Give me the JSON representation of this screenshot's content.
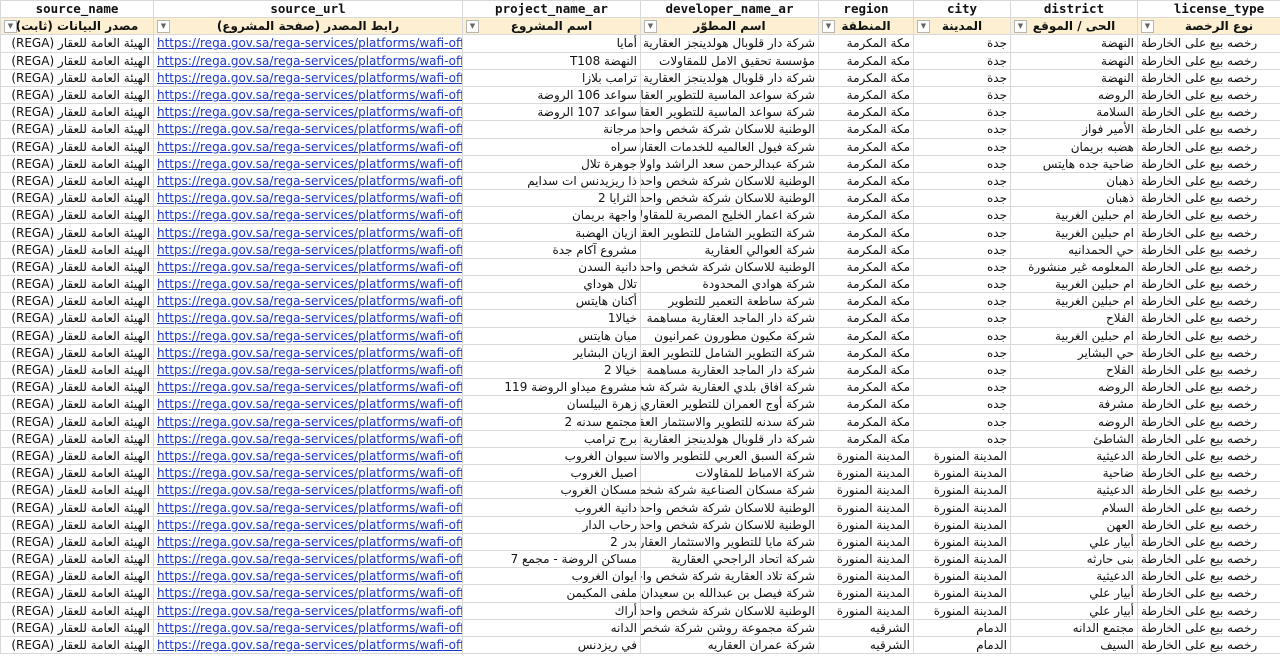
{
  "sheet": {
    "columns": [
      {
        "key": "source_name",
        "header_en": "source_name",
        "header_ar": "مصدر البيانات (ثابت)"
      },
      {
        "key": "source_url",
        "header_en": "source_url",
        "header_ar": "رابط المصدر (صفحة المشروع)"
      },
      {
        "key": "project_name_ar",
        "header_en": "project_name_ar",
        "header_ar": "اسم المشروع"
      },
      {
        "key": "developer_name_ar",
        "header_en": "developer_name_ar",
        "header_ar": "اسم المطوّر"
      },
      {
        "key": "region",
        "header_en": "region",
        "header_ar": "المنطقة"
      },
      {
        "key": "city",
        "header_en": "city",
        "header_ar": "المدينة"
      },
      {
        "key": "district",
        "header_en": "district",
        "header_ar": "الحى / الموقع"
      },
      {
        "key": "license_type",
        "header_en": "license_type",
        "header_ar": "نوع الرخصة"
      }
    ],
    "filter_icon": "dropdown-arrow-icon",
    "colors": {
      "header_fill": "#fdefd2",
      "link": "#1f38c8",
      "grid": "#d9d9d9"
    },
    "rows": [
      [
        "الهيئة العامة للعقار (REGA)",
        "https://rega.gov.sa/rega-services/platforms/wafi-off-",
        "أمايا",
        "شركة دار قلوبال هولدينجز العقارية",
        "مكة المكرمة",
        "جدة",
        "النهضة",
        "رخصه بيع على الخارطة"
      ],
      [
        "الهيئة العامة للعقار (REGA)",
        "https://rega.gov.sa/rega-services/platforms/wafi-off-",
        "النهضة T108",
        "مؤسسة تحقيق الامل للمقاولات",
        "مكة المكرمة",
        "جدة",
        "النهضة",
        "رخصه بيع على الخارطة"
      ],
      [
        "الهيئة العامة للعقار (REGA)",
        "https://rega.gov.sa/rega-services/platforms/wafi-off-",
        "ترامب بلازا",
        "شركة دار قلوبال هولدينجز العقارية",
        "مكة المكرمة",
        "جدة",
        "النهضة",
        "رخصه بيع على الخارطة"
      ],
      [
        "الهيئة العامة للعقار (REGA)",
        "https://rega.gov.sa/rega-services/platforms/wafi-off-",
        "سواعد 106 الروضة",
        "شركة سواعد الماسية للتطوير العقاري",
        "مكة المكرمة",
        "جدة",
        "الروضه",
        "رخصه بيع على الخارطة"
      ],
      [
        "الهيئة العامة للعقار (REGA)",
        "https://rega.gov.sa/rega-services/platforms/wafi-off-",
        "سواعد 107 الروضة",
        "شركة سواعد الماسية للتطوير العقاري",
        "مكة المكرمة",
        "جدة",
        "السلامة",
        "رخصه بيع على الخارطة"
      ],
      [
        "الهيئة العامة للعقار (REGA)",
        "https://rega.gov.sa/rega-services/platforms/wafi-off-",
        "مرجانة",
        "الوطنية للاسكان شركة شخص واحد",
        "مكة المكرمة",
        "جده",
        "الأمير فواز",
        "رخصه بيع على الخارطة"
      ],
      [
        "الهيئة العامة للعقار (REGA)",
        "https://rega.gov.sa/rega-services/platforms/wafi-off-",
        "سراه",
        "شركة فيول العالميه للخدمات العقارية",
        "مكة المكرمة",
        "جده",
        "هضبه بريمان",
        "رخصه بيع على الخارطة"
      ],
      [
        "الهيئة العامة للعقار (REGA)",
        "https://rega.gov.sa/rega-services/platforms/wafi-off-",
        "جوهرة تلال",
        "شركة عبدالرحمن سعد الراشد واولاده",
        "مكة المكرمة",
        "جده",
        "ضاحية جده هايتس",
        "رخصه بيع على الخارطة"
      ],
      [
        "الهيئة العامة للعقار (REGA)",
        "https://rega.gov.sa/rega-services/platforms/wafi-off-",
        "ذا ريزيدنس ات سدايم",
        "الوطنية للاسكان شركة شخص واحد",
        "مكة المكرمة",
        "جده",
        "ذهبان",
        "رخصه بيع على الخارطة"
      ],
      [
        "الهيئة العامة للعقار (REGA)",
        "https://rega.gov.sa/rega-services/platforms/wafi-off-",
        "الثرايا 2",
        "الوطنية للاسكان شركة شخص واحد",
        "مكة المكرمة",
        "جده",
        "ذهبان",
        "رخصه بيع على الخارطة"
      ],
      [
        "الهيئة العامة للعقار (REGA)",
        "https://rega.gov.sa/rega-services/platforms/wafi-off-",
        "واجهة بريمان",
        "شركة اعمار الخليج المصرية للمقاولات",
        "مكة المكرمة",
        "جده",
        "ام حبلين الغربية",
        "رخصه بيع على الخارطة"
      ],
      [
        "الهيئة العامة للعقار (REGA)",
        "https://rega.gov.sa/rega-services/platforms/wafi-off-",
        "ازيان الهضبة",
        "شركة التطوير الشامل للتطوير العقاري",
        "مكة المكرمة",
        "جده",
        "ام حبلين الغربية",
        "رخصه بيع على الخارطة"
      ],
      [
        "الهيئة العامة للعقار (REGA)",
        "https://rega.gov.sa/rega-services/platforms/wafi-off-",
        "مشروع آكام جدة",
        "شركة العوالي العقارية",
        "مكة المكرمة",
        "جده",
        "حي الحمدانيه",
        "رخصه بيع على الخارطة"
      ],
      [
        "الهيئة العامة للعقار (REGA)",
        "https://rega.gov.sa/rega-services/platforms/wafi-off-",
        "دانية السدن",
        "الوطنية للاسكان شركة شخص واحد",
        "مكة المكرمة",
        "جده",
        "المعلومه غير منشورة",
        "رخصه بيع على الخارطة"
      ],
      [
        "الهيئة العامة للعقار (REGA)",
        "https://rega.gov.sa/rega-services/platforms/wafi-off-",
        "تلال هوداي",
        "شركة هوادي المحدودة",
        "مكة المكرمة",
        "جده",
        "ام حبلين الغربية",
        "رخصه بيع على الخارطة"
      ],
      [
        "الهيئة العامة للعقار (REGA)",
        "https://rega.gov.sa/rega-services/platforms/wafi-off-",
        "أكنان هايتس",
        "شركة ساطعة التعمير للتطوير",
        "مكة المكرمة",
        "جده",
        "ام حبلين الغربية",
        "رخصه بيع على الخارطة"
      ],
      [
        "الهيئة العامة للعقار (REGA)",
        "https://rega.gov.sa/rega-services/platforms/wafi-off-",
        "خيالا1",
        "شركة دار الماجد العقارية مساهمة",
        "مكة المكرمة",
        "جده",
        "الفلاح",
        "رخصه بيع على الخارطة"
      ],
      [
        "الهيئة العامة للعقار (REGA)",
        "https://rega.gov.sa/rega-services/platforms/wafi-off-",
        "ميان هايتس",
        "شركة مكيون مطورون عمرانيون",
        "مكة المكرمة",
        "جده",
        "ام حبلين الغربية",
        "رخصه بيع على الخارطة"
      ],
      [
        "الهيئة العامة للعقار (REGA)",
        "https://rega.gov.sa/rega-services/platforms/wafi-off-",
        "ازيان البشاير",
        "شركة التطوير الشامل للتطوير العقاري",
        "مكة المكرمة",
        "جده",
        "حي البشاير",
        "رخصه بيع على الخارطة"
      ],
      [
        "الهيئة العامة للعقار (REGA)",
        "https://rega.gov.sa/rega-services/platforms/wafi-off-",
        "خيالا 2",
        "شركة دار الماجد العقارية مساهمة",
        "مكة المكرمة",
        "جده",
        "الفلاح",
        "رخصه بيع على الخارطة"
      ],
      [
        "الهيئة العامة للعقار (REGA)",
        "https://rega.gov.sa/rega-services/platforms/wafi-off-",
        "مشروع ميداو الروضة 119",
        "شركة افاق بلدي العقارية شركة شخص",
        "مكة المكرمة",
        "جده",
        "الروضه",
        "رخصه بيع على الخارطة"
      ],
      [
        "الهيئة العامة للعقار (REGA)",
        "https://rega.gov.sa/rega-services/platforms/wafi-off-",
        "زهرة البيلسان",
        "شركة أوج العمران للتطوير العقاري",
        "مكة المكرمة",
        "جده",
        "مشرفة",
        "رخصه بيع على الخارطة"
      ],
      [
        "الهيئة العامة للعقار (REGA)",
        "https://rega.gov.sa/rega-services/platforms/wafi-off-",
        "مجتمع سدنه 2",
        "شركة سدنه للتطوير والاستثمار العقاري",
        "مكة المكرمة",
        "جده",
        "الروضه",
        "رخصه بيع على الخارطة"
      ],
      [
        "الهيئة العامة للعقار (REGA)",
        "https://rega.gov.sa/rega-services/platforms/wafi-off-",
        "برج ترامب",
        "شركة دار قلوبال هولدينجز العقارية",
        "مكة المكرمة",
        "جده",
        "الشاطئ",
        "رخصه بيع على الخارطة"
      ],
      [
        "الهيئة العامة للعقار (REGA)",
        "https://rega.gov.sa/rega-services/platforms/wafi-off-",
        "سيوان الغروب",
        "شركة السبق العربي للتطوير والاستثمار",
        "المدينة المنورة",
        "المدينة المنورة",
        "الدعيثية",
        "رخصه بيع على الخارطة"
      ],
      [
        "الهيئة العامة للعقار (REGA)",
        "https://rega.gov.sa/rega-services/platforms/wafi-off-",
        "اصيل الغروب",
        "شركة الامباط للمقاولات",
        "المدينة المنورة",
        "المدينة المنورة",
        "ضاحية",
        "رخصه بيع على الخارطة"
      ],
      [
        "الهيئة العامة للعقار (REGA)",
        "https://rega.gov.sa/rega-services/platforms/wafi-off-",
        "مسكان الغروب",
        "شركة مسكان الصناعية شركة شخص",
        "المدينة المنورة",
        "المدينة المنورة",
        "الدعيثية",
        "رخصه بيع على الخارطة"
      ],
      [
        "الهيئة العامة للعقار (REGA)",
        "https://rega.gov.sa/rega-services/platforms/wafi-off-",
        "دانية الغروب",
        "الوطنية للاسكان شركة شخص واحد",
        "المدينة المنورة",
        "المدينة المنورة",
        "السلام",
        "رخصه بيع على الخارطة"
      ],
      [
        "الهيئة العامة للعقار (REGA)",
        "https://rega.gov.sa/rega-services/platforms/wafi-off-",
        "رحاب الدار",
        "الوطنية للاسكان شركة شخص واحد",
        "المدينة المنورة",
        "المدينة المنورة",
        "العهن",
        "رخصه بيع على الخارطة"
      ],
      [
        "الهيئة العامة للعقار (REGA)",
        "https://rega.gov.sa/rega-services/platforms/wafi-off-",
        "بدر 2",
        "شركة مايا للتطوير والاستثمار العقاري",
        "المدينة المنورة",
        "المدينة المنورة",
        "أبيار علي",
        "رخصه بيع على الخارطة"
      ],
      [
        "الهيئة العامة للعقار (REGA)",
        "https://rega.gov.sa/rega-services/platforms/wafi-off-",
        "مساكن الروضة - مجمع 7",
        "شركة اتحاد الراجحي العقارية",
        "المدينة المنورة",
        "المدينة المنورة",
        "بنى حارثه",
        "رخصه بيع على الخارطة"
      ],
      [
        "الهيئة العامة للعقار (REGA)",
        "https://rega.gov.sa/rega-services/platforms/wafi-off-",
        "ايوان الغروب",
        "شركة تلاد العقارية شركة شخص واحد",
        "المدينة المنورة",
        "المدينة المنورة",
        "الدعيثية",
        "رخصه بيع على الخارطة"
      ],
      [
        "الهيئة العامة للعقار (REGA)",
        "https://rega.gov.sa/rega-services/platforms/wafi-off-",
        "ملفى المكيمن",
        "شركة فيصل بن عبدالله بن سعيدان",
        "المدينة المنورة",
        "المدينة المنورة",
        "أبيار علي",
        "رخصه بيع على الخارطة"
      ],
      [
        "الهيئة العامة للعقار (REGA)",
        "https://rega.gov.sa/rega-services/platforms/wafi-off-",
        "أراك",
        "الوطنية للاسكان شركة شخص واحد",
        "المدينة المنورة",
        "المدينة المنورة",
        "أبيار علي",
        "رخصه بيع على الخارطة"
      ],
      [
        "الهيئة العامة للعقار (REGA)",
        "https://rega.gov.sa/rega-services/platforms/wafi-off-",
        "الدانه",
        "شركة مجموعة روشن شركة شخص",
        "الشرقيه",
        "الدمام",
        "مجتمع الدانه",
        "رخصه بيع على الخارطة"
      ],
      [
        "الهيئة العامة للعقار (REGA)",
        "https://rega.gov.sa/rega-services/platforms/wafi-off-",
        "في ريزدنس",
        "شركة عمران العقاريه",
        "الشرقيه",
        "الدمام",
        "السيف",
        "رخصه بيع على الخارطة"
      ]
    ]
  }
}
